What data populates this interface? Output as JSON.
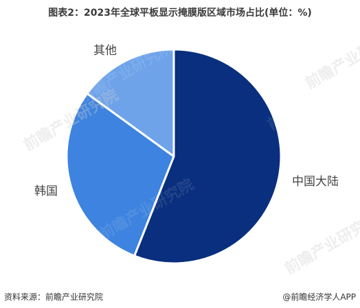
{
  "chart_data": {
    "type": "pie",
    "title": "图表2：2023年全球平板显示掩膜版区域市场占比(单位：%)",
    "slices": [
      {
        "label": "中国大陆",
        "value": 56,
        "color": "#0a2f7e"
      },
      {
        "label": "韩国",
        "value": 29,
        "color": "#3d83df"
      },
      {
        "label": "其他",
        "value": 15,
        "color": "#6ea3ea"
      }
    ],
    "start_angle_deg": 0,
    "direction": "clockwise",
    "legend": "none"
  },
  "source": "资料来源：前瞻产业研究院",
  "brand": "@前瞻经济学人APP",
  "watermark": "前瞻产业研究院"
}
